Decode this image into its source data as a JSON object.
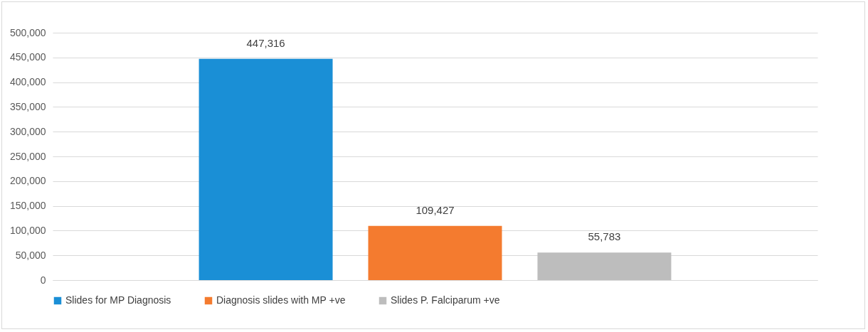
{
  "chart_data": {
    "type": "bar",
    "categories": [
      null
    ],
    "series": [
      {
        "name": "Slides for MP Diagnosis",
        "color": "#1a8fd6",
        "values": [
          447316
        ],
        "value_labels": [
          "447,316"
        ]
      },
      {
        "name": "Diagnosis slides with MP +ve",
        "color": "#f47b2f",
        "values": [
          109427
        ],
        "value_labels": [
          "109,427"
        ]
      },
      {
        "name": "Slides P. Falciparum +ve",
        "color": "#bdbdbd",
        "values": [
          55783
        ],
        "value_labels": [
          "55,783"
        ]
      }
    ],
    "ylim": [
      0,
      500000
    ],
    "yticks": [
      0,
      {
        "value": 50000,
        "label": "50,000"
      },
      {
        "value": 100000,
        "label": "100,000"
      },
      {
        "value": 150000,
        "label": "150,000"
      },
      {
        "value": 200000,
        "label": "200,000"
      },
      {
        "value": 250000,
        "label": "250,000"
      },
      {
        "value": 300000,
        "label": "300,000"
      },
      {
        "value": 350000,
        "label": "350,000"
      },
      {
        "value": 400000,
        "label": "400,000"
      },
      {
        "value": 450000,
        "label": "450,000"
      },
      {
        "value": 500000,
        "label": "500,000"
      }
    ],
    "grid": "y",
    "legend": "bottom"
  }
}
